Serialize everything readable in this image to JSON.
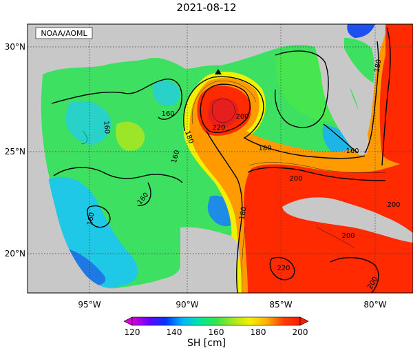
{
  "title": "2021-08-12",
  "credit": "NOAA/AOML",
  "lat_labels": [
    "30°N",
    "25°N",
    "20°N"
  ],
  "lon_labels": [
    "95°W",
    "90°W",
    "85°W",
    "80°W"
  ],
  "contour_labels": [
    "220",
    "200",
    "180",
    "160",
    "160",
    "160",
    "160",
    "180",
    "160",
    "160",
    "180",
    "200",
    "200",
    "200",
    "220",
    "200",
    "180"
  ],
  "colorbar": {
    "ticks": [
      "120",
      "140",
      "160",
      "180",
      "200"
    ],
    "label": "SH [cm]",
    "stops": [
      "#d400d4",
      "#6a00ff",
      "#0036ff",
      "#00b4ff",
      "#00e6a0",
      "#2fe84a",
      "#a6e61e",
      "#f2f200",
      "#ffb000",
      "#ff4000",
      "#ff1a00"
    ]
  },
  "colors": {
    "land": "#c8c8c8",
    "frame": "#000000"
  },
  "marker": "triangle"
}
